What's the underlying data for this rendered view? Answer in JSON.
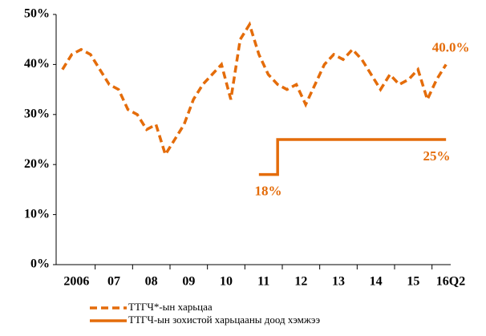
{
  "chart_data": {
    "type": "line",
    "categories": [
      null,
      "2006",
      null,
      null,
      null,
      "07",
      null,
      null,
      null,
      "08",
      null,
      null,
      null,
      "09",
      null,
      null,
      null,
      "10",
      null,
      null,
      null,
      "11",
      null,
      null,
      null,
      "12",
      null,
      null,
      null,
      "13",
      null,
      null,
      null,
      "14",
      null,
      null,
      null,
      "15",
      null,
      null,
      null,
      "16Q2"
    ],
    "series": [
      {
        "name": "ТТГЧ*-ын харьцаа",
        "color": "#e46c0a",
        "dash": true,
        "values": [
          39,
          42,
          43,
          42,
          39,
          36,
          35,
          31,
          30,
          27,
          28,
          22,
          25,
          28,
          33,
          36,
          38,
          40,
          33,
          45,
          48,
          42,
          38,
          36,
          35,
          36,
          32,
          36,
          40,
          42,
          41,
          43,
          41,
          38,
          35,
          38,
          36,
          37,
          39,
          33,
          37,
          40.0
        ],
        "value_labels": [
          null,
          null,
          null,
          null,
          null,
          null,
          null,
          null,
          null,
          null,
          null,
          null,
          null,
          null,
          null,
          null,
          null,
          null,
          null,
          null,
          null,
          null,
          null,
          null,
          null,
          null,
          null,
          null,
          null,
          null,
          null,
          null,
          null,
          null,
          null,
          null,
          null,
          null,
          null,
          null,
          null,
          "40.0%"
        ]
      },
      {
        "name": "ТТГЧ-ын зохистой харьцааны доод хэмжээ",
        "color": "#e46c0a",
        "dash": false,
        "step": true,
        "values": [
          null,
          null,
          null,
          null,
          null,
          null,
          null,
          null,
          null,
          null,
          null,
          null,
          null,
          null,
          null,
          null,
          null,
          null,
          null,
          null,
          null,
          18,
          18,
          25,
          25,
          25,
          25,
          25,
          25,
          25,
          25,
          25,
          25,
          25,
          25,
          25,
          25,
          25,
          25,
          25,
          25,
          25
        ],
        "value_labels": [
          null,
          null,
          null,
          null,
          null,
          null,
          null,
          null,
          null,
          null,
          null,
          null,
          null,
          null,
          null,
          null,
          null,
          null,
          null,
          null,
          null,
          null,
          "18%",
          null,
          null,
          null,
          null,
          null,
          null,
          null,
          null,
          null,
          null,
          null,
          null,
          null,
          null,
          null,
          null,
          null,
          "25%",
          null
        ]
      }
    ],
    "ylim": [
      0,
      50
    ],
    "yticks": [
      {
        "value": 0,
        "label": "0%"
      },
      {
        "value": 10,
        "label": "10%"
      },
      {
        "value": 20,
        "label": "20%"
      },
      {
        "value": 30,
        "label": "30%"
      },
      {
        "value": 40,
        "label": "40%"
      },
      {
        "value": 50,
        "label": "50%"
      }
    ],
    "grid": false,
    "legend": "bottom"
  }
}
